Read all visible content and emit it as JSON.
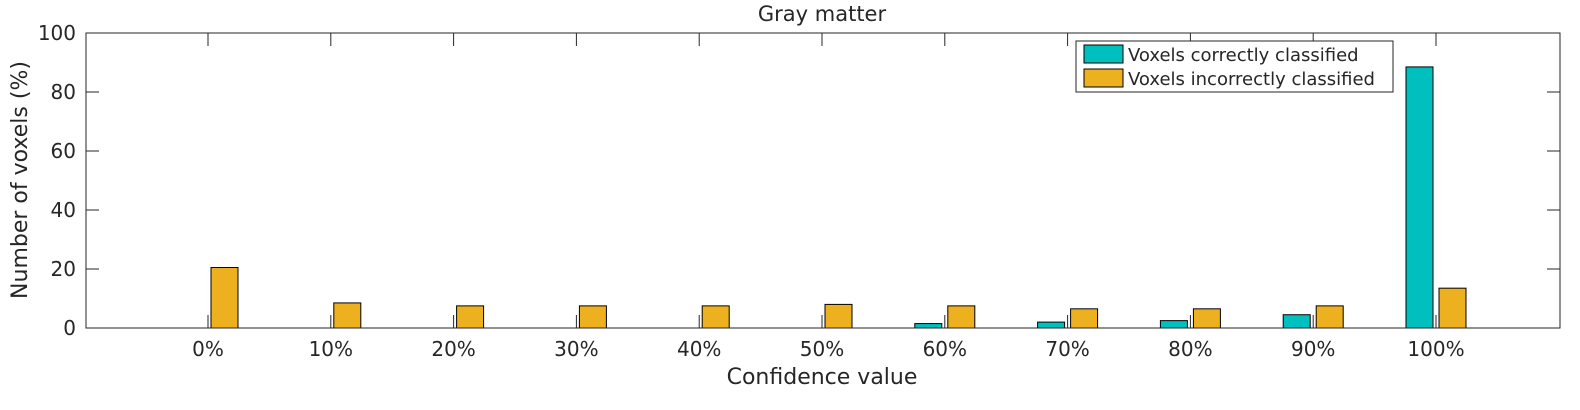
{
  "chart_data": {
    "type": "bar",
    "title": "Gray matter",
    "xlabel": "Confidence value",
    "ylabel": "Number of voxels (%)",
    "ylim": [
      0,
      100
    ],
    "yticks": [
      "0",
      "20",
      "40",
      "60",
      "80",
      "100"
    ],
    "categories": [
      "0%",
      "10%",
      "20%",
      "30%",
      "40%",
      "50%",
      "60%",
      "70%",
      "80%",
      "90%",
      "100%"
    ],
    "series": [
      {
        "name": "Voxels correctly classified",
        "color": "#00BFBF",
        "values": [
          0,
          0,
          0,
          0,
          0,
          0,
          1.5,
          2,
          2.5,
          4.5,
          88.5
        ]
      },
      {
        "name": "Voxels incorrectly classified",
        "color": "#EDB120",
        "values": [
          20.5,
          8.5,
          7.5,
          7.5,
          7.5,
          8,
          7.5,
          6.5,
          6.5,
          7.5,
          13.5
        ]
      }
    ],
    "legend_position": "top-right"
  }
}
